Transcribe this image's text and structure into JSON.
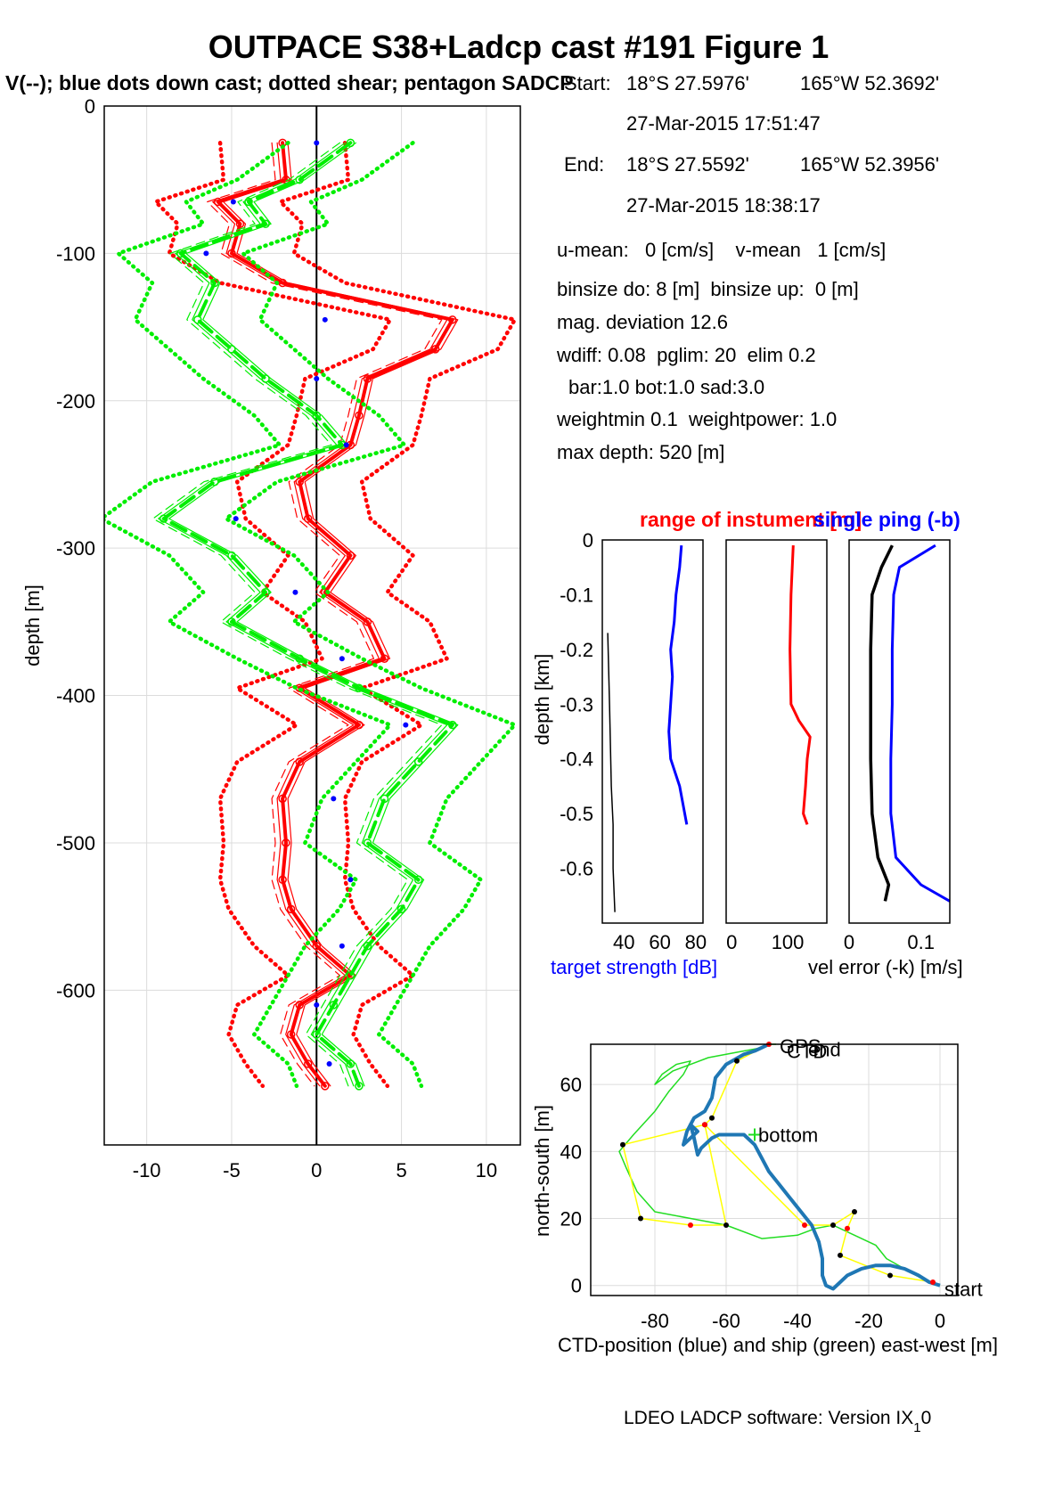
{
  "figure": {
    "title": "OUTPACE S38+Ladcp cast #191  Figure 1",
    "subtitle": "V(--); blue dots down cast; dotted shear; pentagon SADCP",
    "footer_prefix": "LDEO LADCP software: Version IX",
    "footer_sub": "1",
    "footer_suffix": "0"
  },
  "info": {
    "start_label": "Start:",
    "start_lat": "18°S 27.5976'",
    "start_lon": "165°W 52.3692'",
    "start_time": "27-Mar-2015 17:51:47",
    "end_label": "End:",
    "end_lat": "18°S 27.5592'",
    "end_lon": "165°W 52.3956'",
    "end_time": "27-Mar-2015 18:38:17",
    "umean": "u-mean:   0 [cm/s]    v-mean   1 [cm/s]",
    "binsize": "binsize do: 8 [m]  binsize up:  0 [m]",
    "magdev": "mag. deviation 12.6",
    "wdiff": "wdiff: 0.08  pglim: 20  elim 0.2",
    "bar": "bar:1.0 bot:1.0 sad:3.0",
    "weight": "weightmin 0.1  weightpower: 1.0",
    "maxdepth": "max depth: 520 [m]"
  },
  "colors": {
    "u_profile": "#ff0000",
    "v_profile": "#00ee00",
    "blue": "#0000ff",
    "ctd": "#1f77b4",
    "ship": "#22dd22",
    "link": "#ffff00"
  },
  "chart_data": [
    {
      "id": "velocity-profile",
      "type": "line",
      "xlabel": "",
      "ylabel": "depth [m]",
      "xlim": [
        -12.5,
        12
      ],
      "ylim": [
        -705,
        0
      ],
      "xticks": [
        -10,
        -5,
        0,
        5,
        10
      ],
      "yticks": [
        0,
        -100,
        -200,
        -300,
        -400,
        -500,
        -600
      ],
      "grid": true,
      "depth": [
        -25,
        -50,
        -65,
        -80,
        -100,
        -120,
        -145,
        -165,
        -185,
        -210,
        -230,
        -255,
        -280,
        -305,
        -330,
        -350,
        -375,
        -395,
        -420,
        -445,
        -470,
        -500,
        -525,
        -545,
        -570,
        -590,
        -610,
        -630,
        -650,
        -665
      ],
      "series": [
        {
          "name": "U",
          "color": "#ff0000",
          "values": [
            -2,
            -1.8,
            -5.8,
            -4.5,
            -5,
            -2,
            8,
            7,
            3,
            2.5,
            2,
            -1,
            -0.5,
            2,
            0.5,
            3,
            4,
            -1,
            2.5,
            -1,
            -2,
            -1.8,
            -2,
            -1.5,
            0,
            2,
            -1,
            -1.5,
            -0.5,
            0.5
          ]
        },
        {
          "name": "V",
          "color": "#00ee00",
          "values": [
            2,
            -1,
            -4,
            -3,
            -8,
            -6,
            -7,
            -5,
            -3,
            0,
            1.5,
            -6,
            -9,
            -5,
            -3,
            -5,
            -1,
            2.5,
            8,
            6,
            4,
            3,
            6,
            5,
            3,
            2,
            1,
            0,
            2,
            2.5
          ]
        }
      ]
    },
    {
      "id": "target-strength",
      "type": "line",
      "xlabel": "target strength [dB]",
      "ylabel": "depth [km]",
      "xlim": [
        28,
        84
      ],
      "ylim": [
        -0.7,
        0
      ],
      "xticks": [
        40,
        60,
        80
      ],
      "yticks": [
        0,
        -0.1,
        -0.2,
        -0.3,
        -0.4,
        -0.5,
        -0.6
      ],
      "grid": false,
      "series": [
        {
          "name": "",
          "color": "#0000ff",
          "depth": [
            -0.01,
            -0.05,
            -0.1,
            -0.15,
            -0.2,
            -0.25,
            -0.3,
            -0.35,
            -0.4,
            -0.45,
            -0.52
          ],
          "values": [
            72,
            71,
            69,
            68,
            66,
            67,
            66,
            65,
            66,
            71,
            75
          ]
        },
        {
          "name": "",
          "color": "#000000",
          "depth": [
            -0.17,
            -0.3,
            -0.45,
            -0.52,
            -0.6,
            -0.68
          ],
          "values": [
            31,
            32,
            33,
            34,
            34,
            35
          ]
        }
      ]
    },
    {
      "id": "instrument-range",
      "type": "line",
      "title": "range of instument [m]",
      "xlabel": "",
      "ylabel": "",
      "xlim": [
        -10,
        170
      ],
      "ylim": [
        -0.7,
        0
      ],
      "xticks": [
        0,
        100
      ],
      "grid": false,
      "series": [
        {
          "name": "",
          "color": "#ff0000",
          "depth": [
            -0.01,
            -0.1,
            -0.2,
            -0.3,
            -0.33,
            -0.36,
            -0.4,
            -0.45,
            -0.5,
            -0.52
          ],
          "values": [
            110,
            106,
            104,
            106,
            120,
            140,
            135,
            132,
            128,
            135
          ]
        }
      ]
    },
    {
      "id": "velocity-error",
      "type": "line",
      "title": "single ping (-b)",
      "xlabel": "vel error (-k) [m/s]",
      "ylabel": "",
      "xlim": [
        0,
        0.14
      ],
      "ylim": [
        -0.7,
        0
      ],
      "xticks": [
        0,
        0.1
      ],
      "grid": false,
      "series": [
        {
          "name": "",
          "color": "#000000",
          "depth": [
            -0.01,
            -0.05,
            -0.1,
            -0.2,
            -0.3,
            -0.4,
            -0.5,
            -0.58,
            -0.63,
            -0.66
          ],
          "values": [
            0.06,
            0.045,
            0.032,
            0.03,
            0.03,
            0.03,
            0.032,
            0.04,
            0.055,
            0.05
          ]
        },
        {
          "name": "",
          "color": "#0000ff",
          "depth": [
            -0.01,
            -0.05,
            -0.1,
            -0.2,
            -0.3,
            -0.4,
            -0.5,
            -0.58,
            -0.63,
            -0.66
          ],
          "values": [
            0.12,
            0.07,
            0.062,
            0.06,
            0.06,
            0.058,
            0.058,
            0.065,
            0.1,
            0.14
          ]
        }
      ]
    },
    {
      "id": "ctd-position",
      "type": "line",
      "xlabel": "CTD-position (blue) and ship (green) east-west [m]",
      "ylabel": "north-south [m]",
      "xlim": [
        -98,
        5
      ],
      "ylim": [
        -3,
        72
      ],
      "xticks": [
        -80,
        -60,
        -40,
        -20,
        0
      ],
      "yticks": [
        0,
        20,
        40,
        60
      ],
      "grid": true,
      "annotations": [
        "start",
        "bottom",
        "end",
        "GPS",
        "CTD"
      ],
      "series": [
        {
          "name": "",
          "color": "#1f77b4",
          "x": [
            0,
            -3,
            -6,
            -10,
            -14,
            -18,
            -22,
            -26,
            -28,
            -30,
            -32,
            -33,
            -33,
            -34,
            -36,
            -39,
            -42,
            -45,
            -48,
            -50,
            -52,
            -55,
            -58,
            -62,
            -64,
            -67,
            -68,
            -69,
            -70,
            -68,
            -70,
            -72,
            -71,
            -69,
            -66,
            -64,
            -63,
            -60,
            -55,
            -52,
            -50,
            -48
          ],
          "y": [
            0,
            1,
            3,
            5,
            6,
            6,
            5,
            3,
            1,
            -1,
            0,
            3,
            8,
            13,
            18,
            22,
            26,
            30,
            34,
            38,
            42,
            45,
            45,
            45,
            44,
            41,
            39,
            44,
            48,
            46,
            44,
            42,
            46,
            50,
            52,
            56,
            62,
            66,
            69,
            70,
            71,
            72
          ]
        },
        {
          "name": "",
          "color": "#22dd22",
          "x": [
            0,
            -5,
            -10,
            -15,
            -18,
            -22,
            -26,
            -30,
            -35,
            -40,
            -50,
            -60,
            -70,
            -80,
            -85,
            -88,
            -90,
            -86,
            -80,
            -76,
            -72,
            -70,
            -74,
            -78,
            -80,
            -75,
            -70,
            -65,
            -55,
            -50,
            -48,
            -46
          ],
          "y": [
            0,
            2,
            5,
            8,
            12,
            14,
            16,
            18,
            17,
            15,
            14,
            18,
            20,
            22,
            28,
            35,
            40,
            45,
            52,
            58,
            63,
            67,
            66,
            63,
            60,
            64,
            66,
            68,
            70,
            71,
            72,
            72
          ]
        },
        {
          "name": "",
          "color": "#ffff00",
          "x": [
            -2,
            -14,
            -28,
            -26,
            -24,
            -30,
            -38,
            -66,
            -60,
            -70,
            -84,
            -89,
            -66,
            -64,
            -57,
            -48
          ],
          "y": [
            1,
            3,
            9,
            17,
            22,
            18,
            18,
            48,
            18,
            18,
            20,
            42,
            48,
            50,
            67,
            72
          ]
        }
      ]
    }
  ]
}
